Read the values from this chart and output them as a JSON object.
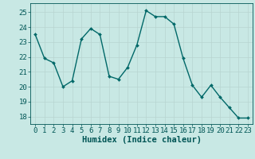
{
  "x": [
    0,
    1,
    2,
    3,
    4,
    5,
    6,
    7,
    8,
    9,
    10,
    11,
    12,
    13,
    14,
    15,
    16,
    17,
    18,
    19,
    20,
    21,
    22,
    23
  ],
  "y": [
    23.5,
    21.9,
    21.6,
    20.0,
    20.4,
    23.2,
    23.9,
    23.5,
    20.7,
    20.5,
    21.3,
    22.8,
    25.1,
    24.7,
    24.7,
    24.2,
    21.9,
    20.1,
    19.3,
    20.1,
    19.3,
    18.6,
    17.9,
    17.9
  ],
  "bg_color": "#c8e8e4",
  "line_color": "#006868",
  "marker_color": "#006868",
  "grid_color": "#b8d4d0",
  "xlabel": "Humidex (Indice chaleur)",
  "ylim": [
    17.5,
    25.6
  ],
  "xlim": [
    -0.5,
    23.5
  ],
  "yticks": [
    18,
    19,
    20,
    21,
    22,
    23,
    24,
    25
  ],
  "xticks": [
    0,
    1,
    2,
    3,
    4,
    5,
    6,
    7,
    8,
    9,
    10,
    11,
    12,
    13,
    14,
    15,
    16,
    17,
    18,
    19,
    20,
    21,
    22,
    23
  ],
  "xlabel_fontsize": 7.5,
  "tick_fontsize": 6.5,
  "text_color": "#005555"
}
